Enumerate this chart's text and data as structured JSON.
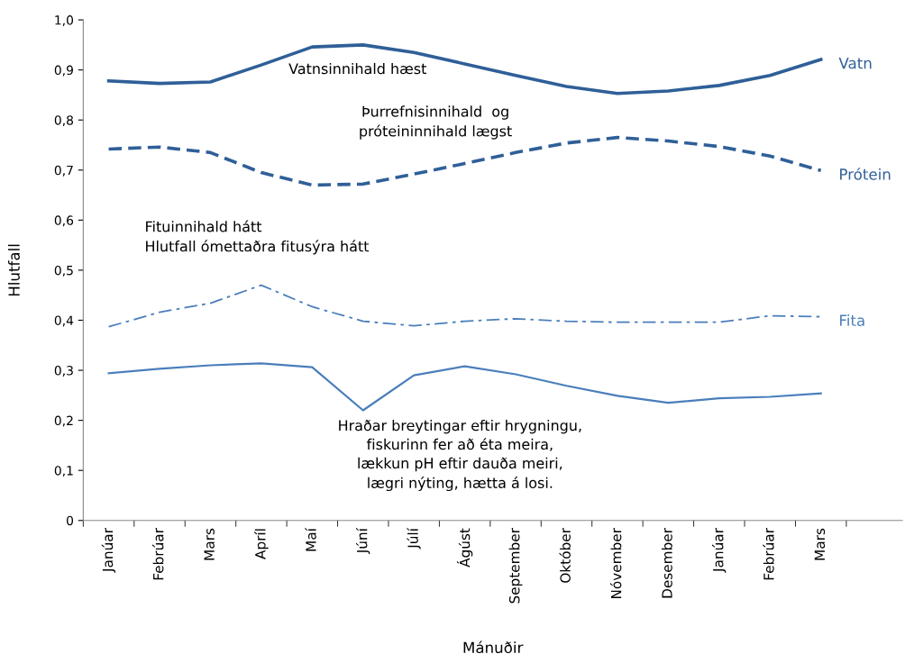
{
  "chart_data": {
    "type": "line",
    "xlabel": "Mánuðir",
    "ylabel": "Hlutfall",
    "categories": [
      "Janúar",
      "Febrúar",
      "Mars",
      "Apríl",
      "Maí",
      "Júní",
      "Júlí",
      "Ágúst",
      "September",
      "Október",
      "Nóvember",
      "Desember",
      "Janúar",
      "Febrúar",
      "Mars"
    ],
    "ylim": [
      0,
      1.0
    ],
    "yticks": [
      {
        "value": 0,
        "label": "0"
      },
      {
        "value": 0.1,
        "label": "0,1"
      },
      {
        "value": 0.2,
        "label": "0,2"
      },
      {
        "value": 0.3,
        "label": "0,3"
      },
      {
        "value": 0.4,
        "label": "0,4"
      },
      {
        "value": 0.5,
        "label": "0,5"
      },
      {
        "value": 0.6,
        "label": "0,6"
      },
      {
        "value": 0.7,
        "label": "0,7"
      },
      {
        "value": 0.8,
        "label": "0,8"
      },
      {
        "value": 0.9,
        "label": "0,9"
      },
      {
        "value": 1.0,
        "label": "1,0"
      }
    ],
    "grid": false,
    "legend": false,
    "marker": "none",
    "series": [
      {
        "name": "Vatn",
        "color": "#2f5f98",
        "line_style": "solid",
        "values": [
          0.878,
          0.873,
          0.876,
          0.91,
          0.946,
          0.95,
          0.935,
          0.912,
          0.889,
          0.867,
          0.853,
          0.858,
          0.869,
          0.889,
          0.921
        ]
      },
      {
        "name": "Prótein",
        "color": "#2f5f98",
        "line_style": "dashed",
        "values": [
          0.742,
          0.746,
          0.735,
          0.695,
          0.67,
          0.672,
          0.692,
          0.713,
          0.735,
          0.754,
          0.765,
          0.758,
          0.747,
          0.728,
          0.699
        ]
      },
      {
        "name": "Fita",
        "color": "#4a7ebb",
        "line_style": "dashdot",
        "values": [
          0.387,
          0.416,
          0.434,
          0.47,
          0.427,
          0.398,
          0.389,
          0.398,
          0.403,
          0.398,
          0.396,
          0.396,
          0.396,
          0.409,
          0.407
        ]
      },
      {
        "color": "#4a7ebb",
        "line_style": "solid",
        "values": [
          0.294,
          0.303,
          0.31,
          0.314,
          0.306,
          0.22,
          0.29,
          0.308,
          0.292,
          0.269,
          0.249,
          0.235,
          0.244,
          0.247,
          0.254
        ]
      }
    ],
    "annotations": [
      "Vatnsinnihald hæst",
      "Þurrefnisinnihald  og\npróteininnihald lægst",
      "Fituinnihald hátt\nHlutfall ómettaðra fitusýra hátt",
      "Hraðar breytingar eftir hrygningu,\nfiskurinn fer að éta meira,\nlækkun pH eftir dauða meiri,\nlægri nýting, hætta á losi."
    ]
  }
}
